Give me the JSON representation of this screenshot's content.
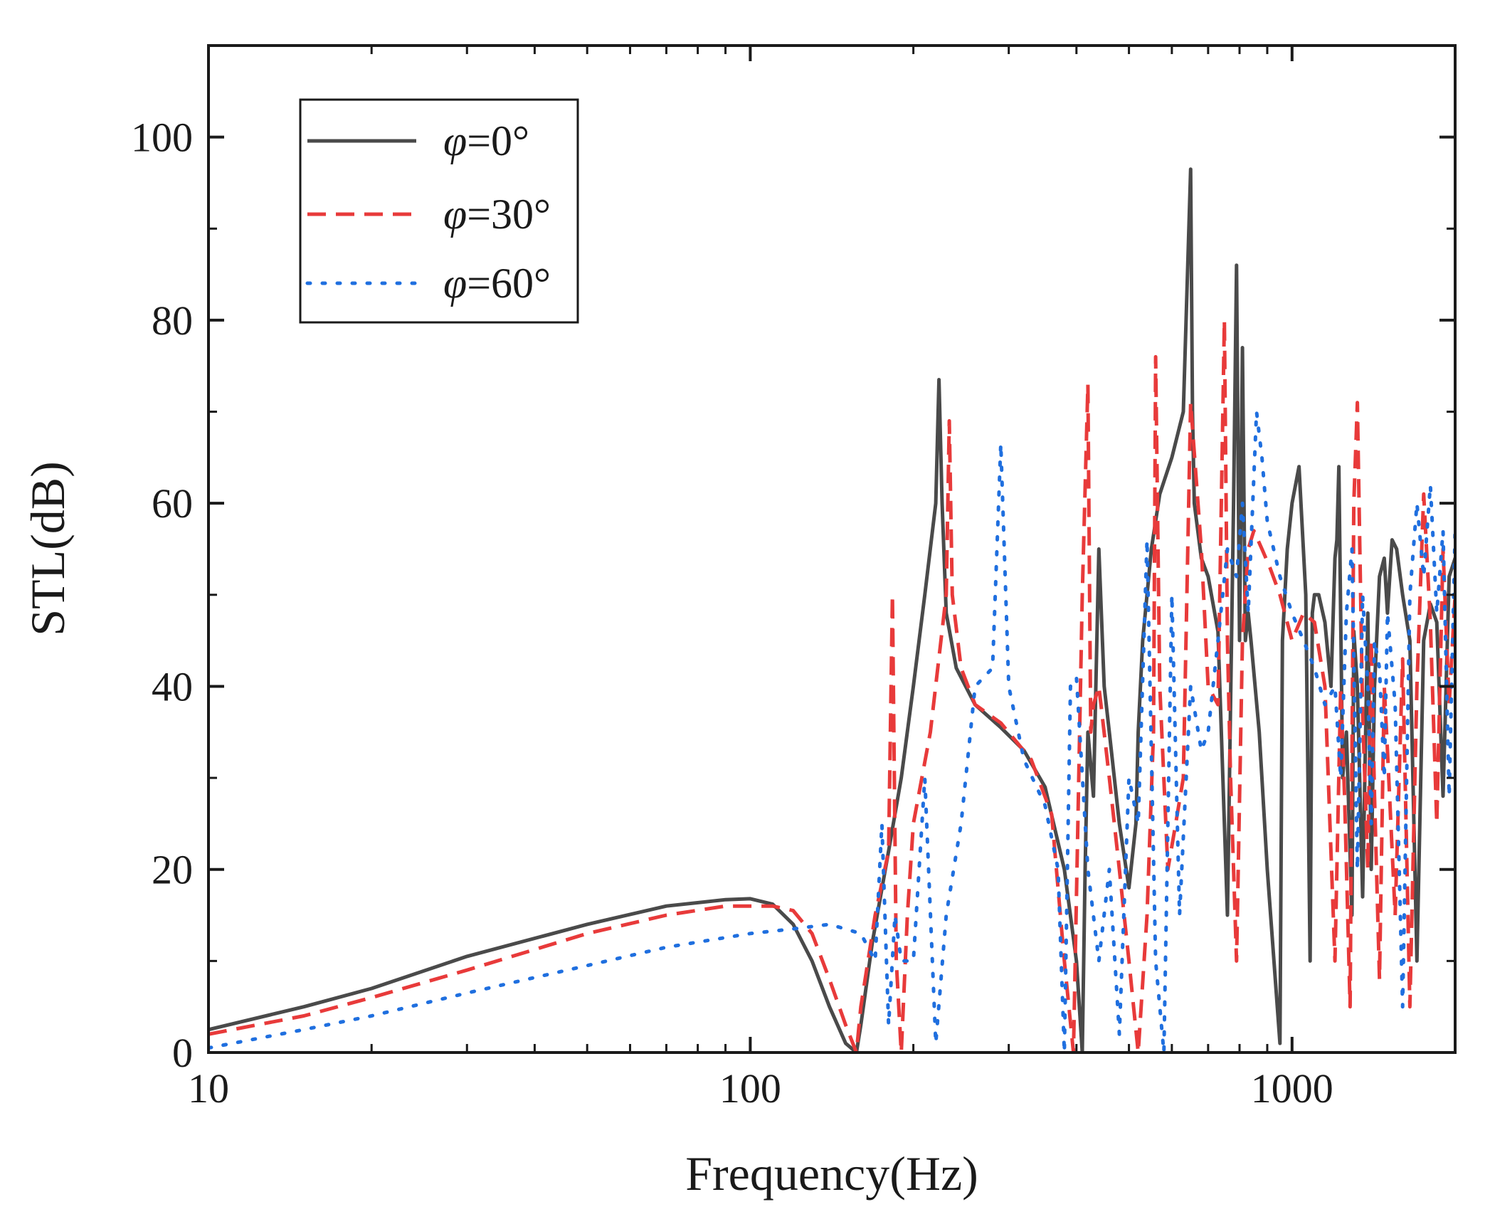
{
  "chart_data": {
    "type": "line",
    "title": "",
    "xlabel": "Frequency(Hz)",
    "ylabel": "STL(dB)",
    "xscale": "log",
    "xlim": [
      10,
      2000
    ],
    "ylim": [
      0,
      110
    ],
    "x_ticks": [
      10,
      100,
      1000
    ],
    "x_tick_labels": [
      "10",
      "100",
      "1000"
    ],
    "y_ticks": [
      0,
      20,
      40,
      60,
      80,
      100
    ],
    "y_tick_labels": [
      "0",
      "20",
      "40",
      "60",
      "80",
      "100"
    ],
    "legend_position": "top-left",
    "series": [
      {
        "name": "φ=0°",
        "label_symbol": "φ",
        "label_rest": "=0°",
        "style": "solid",
        "color": "#4a4a4a",
        "x": [
          10,
          15,
          20,
          30,
          50,
          70,
          90,
          100,
          110,
          120,
          130,
          140,
          150,
          157,
          160,
          168,
          180,
          190,
          200,
          210,
          220,
          223,
          226,
          230,
          240,
          260,
          290,
          320,
          350,
          380,
          400,
          410,
          415,
          420,
          430,
          440,
          450,
          460,
          480,
          500,
          515,
          520,
          530,
          550,
          570,
          600,
          630,
          650,
          655,
          660,
          680,
          700,
          730,
          760,
          780,
          790,
          800,
          810,
          820,
          830,
          840,
          870,
          900,
          950,
          960,
          980,
          1000,
          1030,
          1060,
          1080,
          1090,
          1100,
          1120,
          1150,
          1180,
          1200,
          1210,
          1220,
          1240,
          1260,
          1290,
          1300,
          1320,
          1350,
          1380,
          1400,
          1420,
          1450,
          1480,
          1500,
          1530,
          1560,
          1600,
          1650,
          1700,
          1750,
          1800,
          1850,
          1900,
          1950,
          2000
        ],
        "y": [
          2.5,
          5,
          7,
          10.5,
          14,
          16,
          16.7,
          16.8,
          16.2,
          14,
          10,
          5,
          1,
          0,
          3,
          12,
          22,
          30,
          40,
          50,
          60,
          73.5,
          60,
          48,
          42,
          38,
          35.5,
          33,
          29,
          20,
          10,
          0,
          20,
          35,
          28,
          55,
          40,
          35,
          25,
          18,
          25,
          35,
          45,
          55,
          61,
          65,
          70,
          96.5,
          70,
          60,
          54,
          52,
          46,
          15,
          60,
          86,
          45,
          77,
          45,
          48,
          45,
          35,
          20,
          1,
          45,
          55,
          60,
          64,
          50,
          10,
          48,
          50,
          50,
          47,
          40,
          54,
          56,
          64,
          30,
          35,
          15,
          46,
          40,
          17,
          48,
          20,
          40,
          52,
          54,
          48,
          56,
          55,
          50,
          45,
          10,
          45,
          49,
          47,
          28,
          52,
          54
        ]
      },
      {
        "name": "φ=30°",
        "label_symbol": "φ",
        "label_rest": "=30°",
        "style": "dashed",
        "color": "#e83a3a",
        "x": [
          10,
          15,
          20,
          30,
          50,
          70,
          90,
          100,
          110,
          120,
          130,
          140,
          150,
          157,
          160,
          170,
          180,
          183,
          186,
          190,
          195,
          200,
          215,
          230,
          233,
          236,
          245,
          260,
          290,
          330,
          360,
          380,
          395,
          410,
          420,
          425,
          430,
          440,
          460,
          480,
          500,
          520,
          540,
          555,
          560,
          570,
          590,
          610,
          630,
          650,
          680,
          700,
          730,
          750,
          760,
          770,
          790,
          810,
          830,
          850,
          880,
          910,
          950,
          1000,
          1050,
          1100,
          1150,
          1200,
          1230,
          1250,
          1280,
          1300,
          1320,
          1350,
          1380,
          1400,
          1420,
          1450,
          1480,
          1500,
          1550,
          1600,
          1650,
          1700,
          1750,
          1800,
          1850,
          1900,
          1950,
          2000
        ],
        "y": [
          2,
          4,
          6,
          9,
          13,
          15,
          16,
          16,
          16,
          15.5,
          13,
          8,
          3,
          0,
          5,
          15,
          22,
          50,
          10,
          0,
          15,
          25,
          35,
          50,
          69,
          50,
          42,
          38,
          36,
          32,
          26,
          10,
          0,
          50,
          73,
          35,
          38,
          40,
          30,
          20,
          10,
          0,
          15,
          35,
          76,
          40,
          20,
          25,
          30,
          71,
          55,
          40,
          38,
          80,
          45,
          30,
          10,
          45,
          55,
          57,
          55,
          53,
          50,
          45,
          48,
          47,
          40,
          10,
          40,
          28,
          5,
          60,
          71,
          37,
          20,
          45,
          28,
          8,
          40,
          33,
          15,
          43,
          5,
          40,
          61,
          47,
          25,
          55,
          38,
          50
        ]
      },
      {
        "name": "φ=60°",
        "label_symbol": "φ",
        "label_rest": "=60°",
        "style": "dotted",
        "color": "#1f6fdf",
        "x": [
          10,
          15,
          20,
          30,
          50,
          70,
          100,
          120,
          140,
          160,
          170,
          175,
          180,
          185,
          190,
          200,
          210,
          220,
          230,
          245,
          260,
          280,
          290,
          300,
          320,
          350,
          370,
          380,
          390,
          400,
          420,
          440,
          460,
          480,
          500,
          520,
          540,
          560,
          580,
          600,
          620,
          650,
          680,
          700,
          730,
          760,
          790,
          810,
          830,
          860,
          880,
          900,
          950,
          1000,
          1050,
          1100,
          1150,
          1200,
          1230,
          1260,
          1290,
          1320,
          1350,
          1380,
          1400,
          1420,
          1450,
          1480,
          1500,
          1550,
          1600,
          1650,
          1700,
          1750,
          1800,
          1850,
          1900,
          1950,
          2000
        ],
        "y": [
          0.5,
          2.5,
          4,
          6.5,
          9.5,
          11.5,
          13,
          13.5,
          14,
          13,
          10,
          25,
          3,
          15,
          10,
          10,
          30,
          1,
          15,
          25,
          40,
          42,
          66.5,
          40,
          32,
          27,
          20,
          0,
          40,
          41,
          20,
          10,
          20,
          2,
          30,
          25,
          56,
          10,
          0,
          50,
          15,
          40,
          33,
          35,
          45,
          55,
          52,
          60,
          48,
          70,
          65,
          58,
          52,
          48,
          45,
          42,
          38,
          40,
          30,
          48,
          55,
          20,
          50,
          40,
          25,
          45,
          42,
          30,
          48,
          38,
          5,
          50,
          60,
          52,
          62,
          48,
          57,
          28,
          57
        ]
      }
    ]
  }
}
